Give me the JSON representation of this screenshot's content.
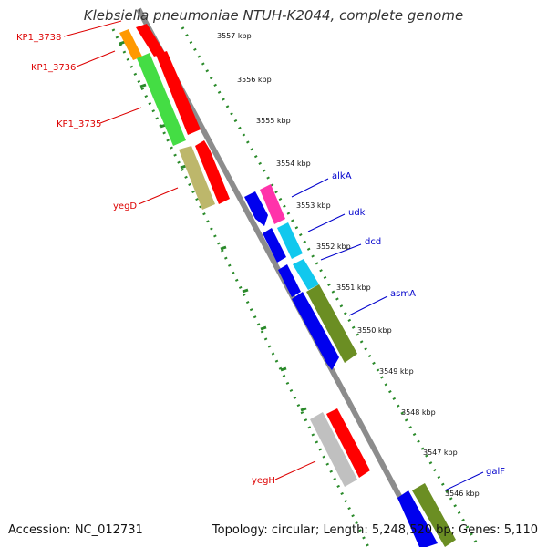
{
  "title": "Klebsiella pneumoniae NTUH-K2044, complete genome",
  "accession": "Accession: NC_012731",
  "summary": "Topology: circular; Length: 5,248,520 bp; Genes: 5,110",
  "ticks": [
    {
      "label": "3557 kbp",
      "kbp": 3557
    },
    {
      "label": "3556 kbp",
      "kbp": 3556
    },
    {
      "label": "3555 kbp",
      "kbp": 3555
    },
    {
      "label": "3554 kbp",
      "kbp": 3554
    },
    {
      "label": "3553 kbp",
      "kbp": 3553
    },
    {
      "label": "3552 kbp",
      "kbp": 3552
    },
    {
      "label": "3551 kbp",
      "kbp": 3551
    },
    {
      "label": "3550 kbp",
      "kbp": 3550
    },
    {
      "label": "3549 kbp",
      "kbp": 3549
    },
    {
      "label": "3548 kbp",
      "kbp": 3548
    },
    {
      "label": "3547 kbp",
      "kbp": 3547
    },
    {
      "label": "3546 kbp",
      "kbp": 3546
    }
  ],
  "gene_labels": [
    {
      "name": "KP1_3738",
      "color": "#dd0000",
      "side": "left"
    },
    {
      "name": "KP1_3736",
      "color": "#dd0000",
      "side": "left"
    },
    {
      "name": "KP1_3735",
      "color": "#dd0000",
      "side": "left"
    },
    {
      "name": "yegD",
      "color": "#dd0000",
      "side": "left"
    },
    {
      "name": "yegH",
      "color": "#dd0000",
      "side": "left"
    },
    {
      "name": "alkA",
      "color": "#0000cc",
      "side": "right"
    },
    {
      "name": "udk",
      "color": "#0000cc",
      "side": "right"
    },
    {
      "name": "dcd",
      "color": "#0000cc",
      "side": "right"
    },
    {
      "name": "asmA",
      "color": "#0000cc",
      "side": "right"
    },
    {
      "name": "galF",
      "color": "#0000cc",
      "side": "right"
    }
  ],
  "colors": {
    "backbone": "#8c8c8c",
    "tick": "#2a8a2a",
    "red": "#ff0000",
    "orange": "#ff9900",
    "green": "#44dd44",
    "khaki": "#bdb76b",
    "silver": "#c0c0c0",
    "blue": "#0000ee",
    "magenta": "#ff33aa",
    "cyan": "#11c8ee",
    "olive": "#6b8e23"
  }
}
